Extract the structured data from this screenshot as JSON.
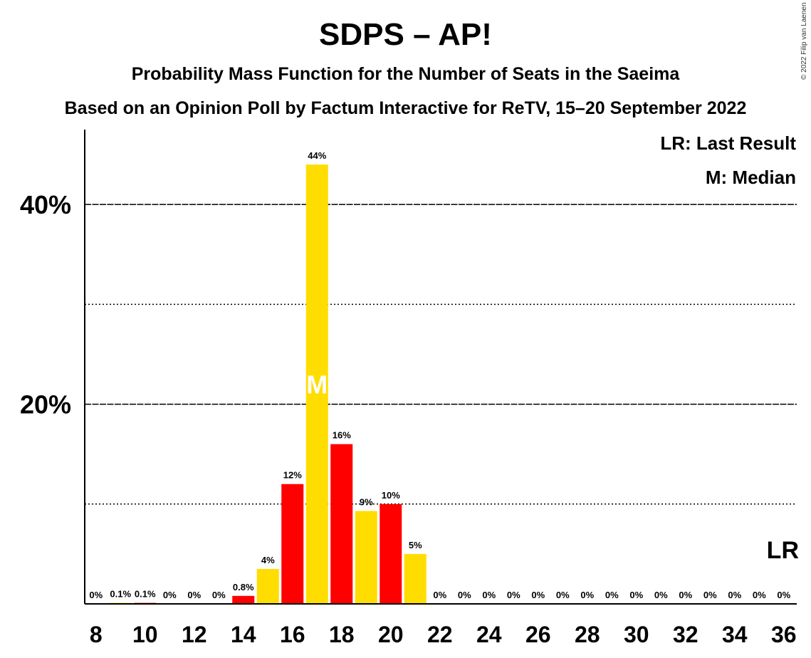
{
  "colors": {
    "primary": "#FFDD00",
    "secondary": "#FF0000",
    "median_text": "#ffffff"
  },
  "chart_data": {
    "type": "bar",
    "title": "SDPS – AP!",
    "subtitle": "Probability Mass Function for the Number of Seats in the Saeima",
    "subtitle2": "Based on an Opinion Poll by Factum Interactive for ReTV, 15–20 September 2022",
    "copyright": "© 2022 Filip van Laenen",
    "ylim": [
      0,
      47.5
    ],
    "yticks": [
      {
        "value": 20,
        "label": "20%"
      },
      {
        "value": 40,
        "label": "40%"
      }
    ],
    "gridlines": {
      "solid": [
        20,
        40
      ],
      "dotted": [
        10,
        30
      ]
    },
    "xticks": [
      "8",
      "10",
      "12",
      "14",
      "16",
      "18",
      "20",
      "22",
      "24",
      "26",
      "28",
      "30",
      "32",
      "34",
      "36"
    ],
    "x": [
      8,
      9,
      10,
      11,
      12,
      13,
      14,
      15,
      16,
      17,
      18,
      19,
      20,
      21,
      22,
      23,
      24,
      25,
      26,
      27,
      28,
      29,
      30,
      31,
      32,
      33,
      34,
      35,
      36
    ],
    "values": [
      0,
      0.1,
      0.1,
      0,
      0,
      0,
      0.8,
      3.5,
      12,
      44,
      16,
      9.3,
      10,
      5,
      0,
      0,
      0,
      0,
      0,
      0,
      0,
      0,
      0,
      0,
      0,
      0,
      0,
      0,
      0
    ],
    "labels": [
      "0%",
      "0.1%",
      "0.1%",
      "0%",
      "0%",
      "0%",
      "0.8%",
      "4%",
      "12%",
      "44%",
      "16%",
      "9%",
      "10%",
      "5%",
      "0%",
      "0%",
      "0%",
      "0%",
      "0%",
      "0%",
      "0%",
      "0%",
      "0%",
      "0%",
      "0%",
      "0%",
      "0%",
      "0%",
      "0%"
    ],
    "median": 17,
    "median_label": "M",
    "last_result": 36,
    "last_result_label": "LR",
    "legend": [
      "LR: Last Result",
      "M: Median"
    ],
    "legend_position": "top-right"
  }
}
